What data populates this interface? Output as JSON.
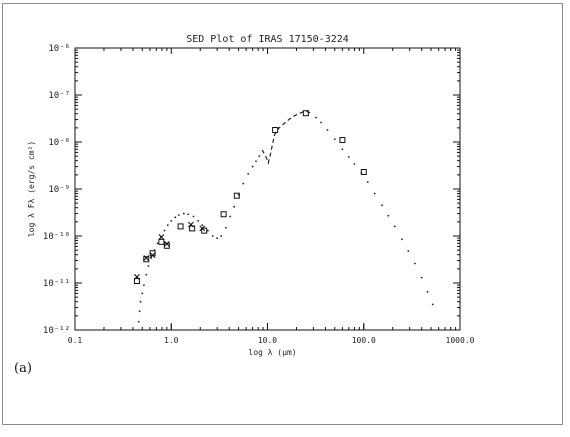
{
  "panel_label": "(a)",
  "chart_data": {
    "type": "scatter",
    "title": "SED Plot of IRAS 17150-3224",
    "xlabel": "log λ (μm)",
    "ylabel": "log λ Fλ (erg/s cm²)",
    "x_scale": "log",
    "y_scale": "log",
    "xlim": [
      0.1,
      1000
    ],
    "ylim": [
      1e-12,
      1e-06
    ],
    "x_ticks": [
      {
        "value": 0.1,
        "label": "0.1"
      },
      {
        "value": 1,
        "label": "1.0"
      },
      {
        "value": 10,
        "label": "10.0"
      },
      {
        "value": 100,
        "label": "100.0"
      },
      {
        "value": 1000,
        "label": "1000.0"
      }
    ],
    "y_ticks": [
      {
        "value": 1e-12,
        "label": "10⁻¹²"
      },
      {
        "value": 1e-11,
        "label": "10⁻¹¹"
      },
      {
        "value": 1e-10,
        "label": "10⁻¹⁰"
      },
      {
        "value": 1e-09,
        "label": "10⁻⁹"
      },
      {
        "value": 1e-08,
        "label": "10⁻⁸"
      },
      {
        "value": 1e-07,
        "label": "10⁻⁷"
      },
      {
        "value": 1e-06,
        "label": "10⁻⁶"
      }
    ],
    "grid": false,
    "series": [
      {
        "marker": "square",
        "points": [
          [
            0.44,
            1.1e-11
          ],
          [
            0.55,
            3.2e-11
          ],
          [
            0.64,
            4.3e-11
          ],
          [
            0.79,
            7.5e-11
          ],
          [
            0.9,
            6.2e-11
          ],
          [
            1.25,
            1.6e-10
          ],
          [
            1.65,
            1.45e-10
          ],
          [
            2.2,
            1.3e-10
          ],
          [
            3.5,
            2.9e-10
          ],
          [
            4.8,
            7.2e-10
          ],
          [
            12,
            1.8e-08
          ],
          [
            25,
            4.1e-08
          ],
          [
            60,
            1.1e-08
          ],
          [
            100,
            2.3e-09
          ]
        ]
      },
      {
        "marker": "cross",
        "points": [
          [
            0.44,
            1.35e-11
          ],
          [
            0.55,
            3.4e-11
          ],
          [
            0.64,
            3.9e-11
          ],
          [
            0.79,
            9.5e-11
          ],
          [
            0.9,
            6.8e-11
          ],
          [
            1.6,
            1.75e-10
          ],
          [
            2.1,
            1.45e-10
          ]
        ]
      },
      {
        "style": "dashed",
        "points": [
          [
            8.8,
            6.8e-09
          ],
          [
            9.3,
            5.5e-09
          ],
          [
            9.8,
            4.5e-09
          ],
          [
            10.2,
            3.6e-09
          ],
          [
            10.8,
            5.8e-09
          ],
          [
            11.8,
            1.4e-08
          ],
          [
            13,
            1.95e-08
          ],
          [
            15,
            2.5e-08
          ],
          [
            17,
            3.1e-08
          ],
          [
            19,
            3.6e-08
          ],
          [
            21,
            4e-08
          ],
          [
            23,
            4.3e-08
          ],
          [
            25,
            4.5e-08
          ],
          [
            27,
            4.3e-08
          ],
          [
            29,
            3.9e-08
          ]
        ]
      },
      {
        "style": "dotted",
        "points": [
          [
            0.46,
            1.5e-12
          ],
          [
            0.47,
            2.5e-12
          ],
          [
            0.48,
            4e-12
          ],
          [
            0.5,
            6e-12
          ],
          [
            0.52,
            9e-12
          ],
          [
            0.55,
            1.5e-11
          ],
          [
            0.58,
            2.3e-11
          ],
          [
            0.62,
            3.4e-11
          ],
          [
            0.67,
            5e-11
          ],
          [
            0.72,
            7e-11
          ],
          [
            0.78,
            9.5e-11
          ],
          [
            0.85,
            1.3e-10
          ],
          [
            0.92,
            1.7e-10
          ],
          [
            1.0,
            2.1e-10
          ],
          [
            1.1,
            2.5e-10
          ],
          [
            1.2,
            2.8e-10
          ],
          [
            1.35,
            3e-10
          ],
          [
            1.5,
            2.9e-10
          ],
          [
            1.7,
            2.6e-10
          ],
          [
            1.9,
            2.1e-10
          ],
          [
            2.1,
            1.7e-10
          ],
          [
            2.4,
            1.3e-10
          ],
          [
            2.7,
            1e-10
          ],
          [
            3.0,
            9e-11
          ],
          [
            3.3,
            1e-10
          ],
          [
            3.7,
            1.5e-10
          ],
          [
            4.1,
            2.6e-10
          ],
          [
            4.5,
            4.2e-10
          ],
          [
            5.0,
            7.5e-10
          ],
          [
            5.6,
            1.3e-09
          ],
          [
            6.3,
            2.1e-09
          ],
          [
            7.0,
            3e-09
          ],
          [
            7.6,
            3.9e-09
          ],
          [
            8.2,
            5e-09
          ],
          [
            32,
            3.3e-08
          ],
          [
            36,
            2.6e-08
          ],
          [
            42,
            1.8e-08
          ],
          [
            50,
            1.15e-08
          ],
          [
            60,
            7e-09
          ],
          [
            70,
            4.8e-09
          ],
          [
            80,
            3.4e-09
          ],
          [
            95,
            2.2e-09
          ],
          [
            110,
            1.4e-09
          ],
          [
            130,
            8e-10
          ],
          [
            155,
            4.5e-10
          ],
          [
            180,
            2.7e-10
          ],
          [
            210,
            1.6e-10
          ],
          [
            250,
            8.5e-11
          ],
          [
            290,
            4.8e-11
          ],
          [
            340,
            2.6e-11
          ],
          [
            400,
            1.3e-11
          ],
          [
            460,
            6.5e-12
          ],
          [
            520,
            3.5e-12
          ]
        ]
      }
    ]
  }
}
